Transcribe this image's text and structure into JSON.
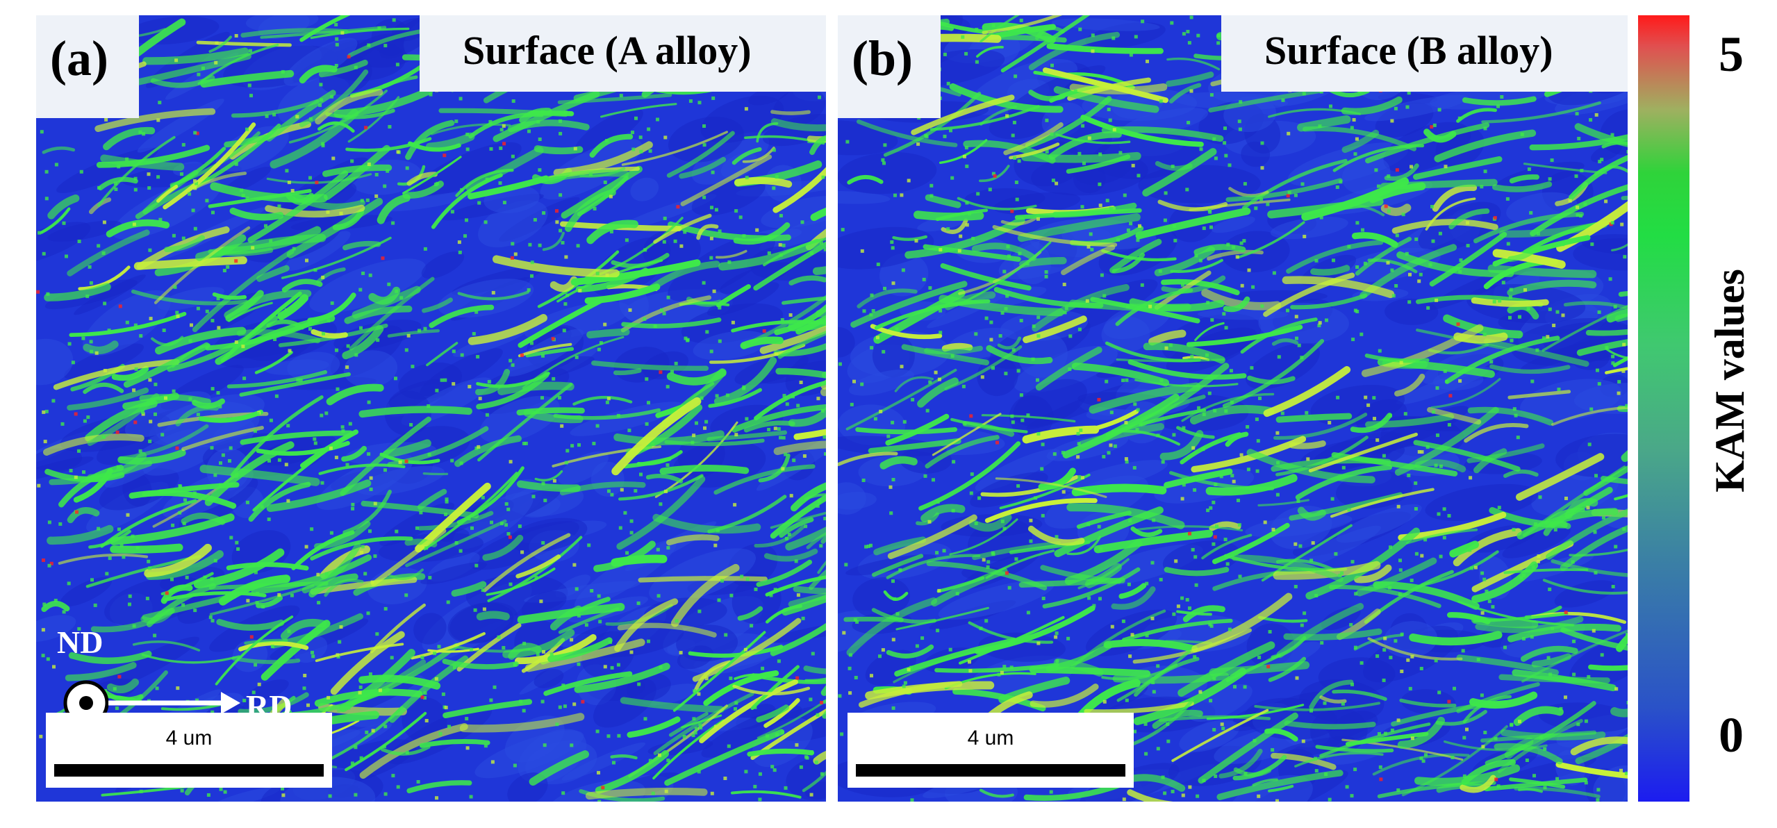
{
  "panels": [
    {
      "label": "(a)",
      "title": "Surface (A alloy)",
      "scalebar_label": "4 um",
      "axes": {
        "normal": "ND",
        "rolling": "RD"
      }
    },
    {
      "label": "(b)",
      "title": "Surface (B alloy)",
      "scalebar_label": "4 um"
    }
  ],
  "colorbar": {
    "title": "KAM values",
    "max_label": "5",
    "min_label": "0",
    "colors": {
      "low": "#1c1cf0",
      "mid": "#22dd44",
      "high": "#ff1a1a"
    }
  },
  "colors": {
    "map_background": "#1f36d8",
    "band": "#3ee84a",
    "band_bright": "#c8f03a",
    "label_box": "#eef2f8"
  }
}
